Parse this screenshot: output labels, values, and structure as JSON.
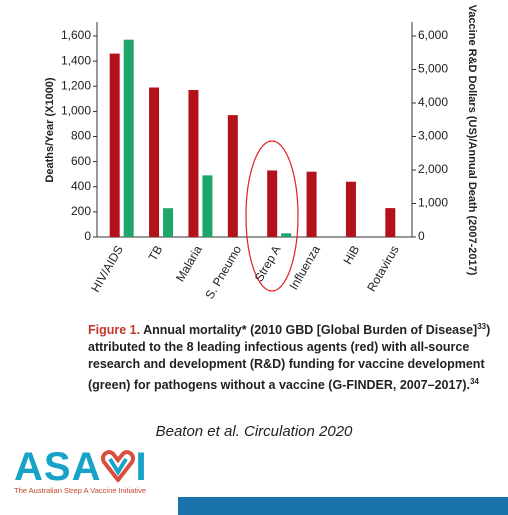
{
  "chart_data": {
    "type": "bar",
    "ylabel": "Deaths/Year (X1000)",
    "y2label": "Vaccine R&D Dollars (US)/Annual Death (2007-2017)",
    "categories": [
      "HIV/AIDS",
      "TB",
      "Malaria",
      "S. Pneumo",
      "Strep A",
      "Influenza",
      "HiB",
      "Rotavirus"
    ],
    "series": [
      {
        "color": "#b3121c",
        "values": [
          1460,
          1190,
          1170,
          970,
          530,
          520,
          440,
          230
        ]
      },
      {
        "color": "#1ea56a",
        "axis": "y2",
        "values": [
          5890,
          860,
          1840,
          null,
          110,
          null,
          null,
          null
        ]
      }
    ],
    "ylim": [
      0,
      1600
    ],
    "yticks": [
      0,
      200,
      400,
      600,
      800,
      {
        "value": 1000,
        "label": "1,000"
      },
      {
        "value": 1200,
        "label": "1,200"
      },
      {
        "value": 1400,
        "label": "1,400"
      },
      {
        "value": 1600,
        "label": "1,600"
      }
    ],
    "y2lim": [
      0,
      6000
    ],
    "y2ticks": [
      0,
      {
        "value": 1000,
        "label": "1,000"
      },
      {
        "value": 2000,
        "label": "2,000"
      },
      {
        "value": 3000,
        "label": "3,000"
      },
      {
        "value": 4000,
        "label": "4,000"
      },
      {
        "value": 5000,
        "label": "5,000"
      },
      {
        "value": 6000,
        "label": "6,000"
      }
    ],
    "grid": false
  },
  "caption": {
    "label": "Figure 1.",
    "text1": "Annual mortality* (2010 GBD [Global Burden of Disease]",
    "sup1": "33",
    "text2": ") attributed to the 8 leading infectious agents (red) with all-source research and development (R&D) funding for vaccine development (green) for pathogens without a vaccine (G-FINDER, 2007–2017).",
    "sup2": "34"
  },
  "citation": "Beaton et al. Circulation 2020",
  "logo": {
    "left": "ASA",
    "right": "I",
    "tagline": "The Australian Strep A Vaccine Initiative"
  }
}
